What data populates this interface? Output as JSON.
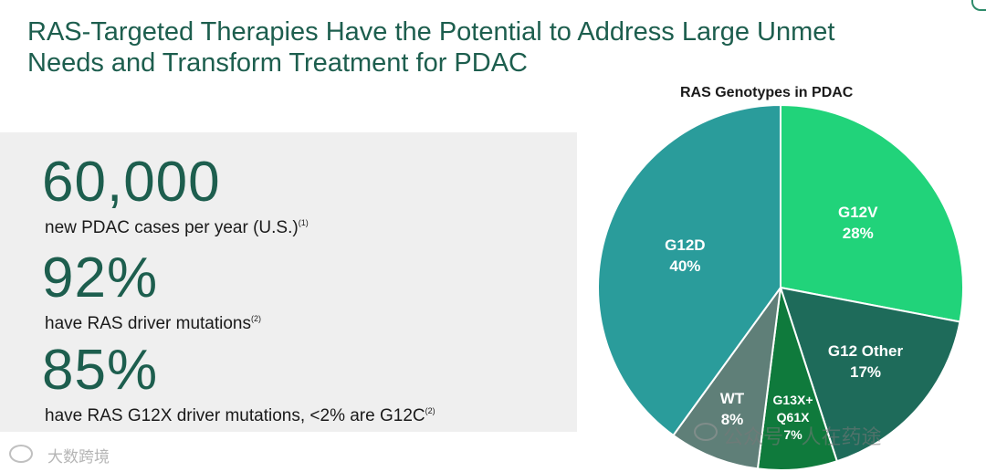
{
  "title_line1": "RAS-Targeted Therapies Have the Potential to Address Large Unmet",
  "title_line2": "Needs and Transform Treatment for PDAC",
  "stats": [
    {
      "value": "60,000",
      "desc": "new PDAC cases per year (U.S.)",
      "sup": "(1)"
    },
    {
      "value": "92%",
      "desc": "have RAS driver mutations",
      "sup": "(2)"
    },
    {
      "value": "85%",
      "desc": "have RAS G12X driver mutations, <2% are G12C",
      "sup": "(2)"
    }
  ],
  "watermark": {
    "left_text": "大数跨境",
    "right_text": "公众号 · 人在药途"
  },
  "chart_data": {
    "type": "pie",
    "title": "RAS Genotypes in PDAC",
    "start_angle_deg": 0,
    "direction": "clockwise",
    "slices": [
      {
        "label": "G12V",
        "value": 28,
        "display": "28%",
        "color": "#21d37a"
      },
      {
        "label": "G12 Other",
        "value": 17,
        "display": "17%",
        "color": "#1e6b5a"
      },
      {
        "label": "G13X+ Q61X",
        "value": 7,
        "display": "7%",
        "color": "#0f7a3c"
      },
      {
        "label": "WT",
        "value": 8,
        "display": "8%",
        "color": "#5f7f78"
      },
      {
        "label": "G12D",
        "value": 40,
        "display": "40%",
        "color": "#2a9c9b"
      }
    ]
  }
}
